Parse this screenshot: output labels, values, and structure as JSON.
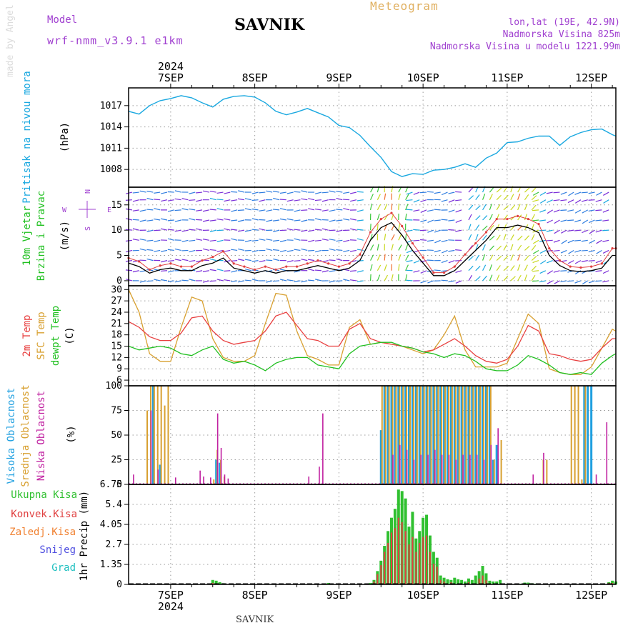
{
  "header": {
    "model_label": "Model",
    "model_version": "wrf-nmm_v3.9.1 e1km",
    "title": "SAVNIK",
    "subtitle": "Meteogram",
    "lonlat": "lon,lat (19E, 42.9N)",
    "elevation": "Nadmorska Visina 825m",
    "model_elevation": "Nadmorska Visina u modelu 1221.99m",
    "year": "2024",
    "footer": "SAVNIK",
    "credit": "made by Angel"
  },
  "time_axis": {
    "labels": [
      "7SEP",
      "8SEP",
      "9SEP",
      "10SEP",
      "11SEP",
      "12SEP"
    ],
    "range_hours": [
      -12,
      127
    ]
  },
  "colors": {
    "pressure": "#1aa8e0",
    "temp2m": "#e84040",
    "sfc": "#d8a030",
    "dewpt": "#20c020",
    "high_cloud": "#20a0e0",
    "mid_cloud": "#d8a030",
    "low_cloud": "#c020a0",
    "total_precip": "#30c030",
    "conv_precip": "#e04040",
    "frozen": "#f08030",
    "snow": "#5050e0",
    "hail": "#20c0c0",
    "wind_speed": "#000000",
    "gust": "#e04040"
  },
  "chart_data": [
    {
      "type": "line",
      "panel": "pressure",
      "ylabel": "Pritisak na nivou mora",
      "unit": "(hPa)",
      "yticks": [
        "1017",
        "1014",
        "1011",
        "1008"
      ],
      "ylim": [
        1005.5,
        1019.5
      ],
      "x": [
        -12,
        -9,
        -6,
        -3,
        0,
        3,
        6,
        9,
        12,
        15,
        18,
        21,
        24,
        27,
        30,
        33,
        36,
        39,
        42,
        45,
        48,
        51,
        54,
        57,
        60,
        63,
        66,
        69,
        72,
        75,
        78,
        81,
        84,
        87,
        90,
        93,
        96,
        99,
        102,
        105,
        108,
        111,
        114,
        117,
        120,
        123,
        126,
        127
      ],
      "values": [
        1016.2,
        1015.8,
        1017.0,
        1017.7,
        1018.0,
        1018.4,
        1018.1,
        1017.4,
        1016.8,
        1017.9,
        1018.3,
        1018.4,
        1018.2,
        1017.4,
        1016.2,
        1015.7,
        1016.1,
        1016.6,
        1016.0,
        1015.4,
        1014.2,
        1013.9,
        1012.8,
        1011.2,
        1009.7,
        1007.7,
        1007.0,
        1007.4,
        1007.3,
        1007.9,
        1008.0,
        1008.3,
        1008.8,
        1008.3,
        1009.6,
        1010.3,
        1011.8,
        1011.9,
        1012.4,
        1012.7,
        1012.7,
        1011.4,
        1012.6,
        1013.2,
        1013.6,
        1013.7,
        1012.9,
        1012.7
      ]
    },
    {
      "type": "line",
      "panel": "wind",
      "ylabel": "10m Vjetar",
      "ylabel2": "Brzina i Pravac",
      "unit": "(m/s)",
      "compass": {
        "n": "N",
        "s": "S",
        "e": "E",
        "w": "W"
      },
      "yticks": [
        "15",
        "10",
        "5",
        "0"
      ],
      "ylim": [
        -1,
        18.5
      ],
      "x": [
        -12,
        -9,
        -6,
        -3,
        0,
        3,
        6,
        9,
        12,
        15,
        18,
        21,
        24,
        27,
        30,
        33,
        36,
        39,
        42,
        45,
        48,
        51,
        54,
        57,
        60,
        63,
        66,
        69,
        72,
        75,
        78,
        81,
        84,
        87,
        90,
        93,
        96,
        99,
        102,
        105,
        108,
        111,
        114,
        117,
        120,
        123,
        126,
        127
      ],
      "values": [
        3.5,
        2.8,
        1.5,
        2.2,
        2.5,
        2.0,
        2.0,
        3.0,
        3.5,
        4.5,
        2.5,
        2.0,
        1.5,
        2.0,
        1.5,
        2.0,
        2.0,
        2.5,
        3.0,
        2.5,
        2.0,
        2.5,
        4.0,
        8.0,
        10.5,
        11.5,
        9.0,
        6.0,
        3.5,
        1.0,
        1.0,
        2.0,
        4.0,
        6.0,
        8.0,
        10.5,
        10.5,
        11.0,
        10.5,
        9.5,
        5.0,
        3.0,
        2.0,
        1.8,
        2.0,
        2.5,
        5.0,
        5.0
      ],
      "gust": [
        4.5,
        3.8,
        2.2,
        3.0,
        3.4,
        2.8,
        2.8,
        4.0,
        4.7,
        5.8,
        3.4,
        2.8,
        2.2,
        2.8,
        2.2,
        2.8,
        2.8,
        3.4,
        4.0,
        3.4,
        2.8,
        3.4,
        5.2,
        9.6,
        12.2,
        13.4,
        10.8,
        7.4,
        4.6,
        1.6,
        1.6,
        2.8,
        5.2,
        7.4,
        9.6,
        12.2,
        12.2,
        12.8,
        12.2,
        11.2,
        6.4,
        4.0,
        2.8,
        2.6,
        2.8,
        3.4,
        6.4,
        6.4
      ]
    },
    {
      "type": "line",
      "panel": "temperature",
      "ylabel": "2m Temp",
      "ylabel2": "SFC Temp",
      "ylabel3": "dewpt Temp",
      "unit": "(C)",
      "yticks": [
        "30",
        "27",
        "24",
        "21",
        "18",
        "15",
        "12",
        "9",
        "6"
      ],
      "ylim": [
        4.5,
        31
      ],
      "x": [
        -12,
        -9,
        -6,
        -3,
        0,
        3,
        6,
        9,
        12,
        15,
        18,
        21,
        24,
        27,
        30,
        33,
        36,
        39,
        42,
        45,
        48,
        51,
        54,
        57,
        60,
        63,
        66,
        69,
        72,
        75,
        78,
        81,
        84,
        87,
        90,
        93,
        96,
        99,
        102,
        105,
        108,
        111,
        114,
        117,
        120,
        123,
        126,
        127
      ],
      "temp2m": [
        21.5,
        20.0,
        17.5,
        16.5,
        16.5,
        18.5,
        22.5,
        23.0,
        19.0,
        16.5,
        15.5,
        16.0,
        16.5,
        19.0,
        23.0,
        24.0,
        20.5,
        17.0,
        16.5,
        15.0,
        15.0,
        19.5,
        21.0,
        17.0,
        16.0,
        15.5,
        15.0,
        14.5,
        13.5,
        14.0,
        15.5,
        17.0,
        15.0,
        12.5,
        11.0,
        10.5,
        11.5,
        15.0,
        20.5,
        19.0,
        13.0,
        12.5,
        11.5,
        11.0,
        11.5,
        14.5,
        17.0,
        17.0
      ],
      "sfc": [
        30.0,
        24.0,
        13.0,
        11.0,
        11.0,
        20.0,
        28.0,
        27.0,
        17.0,
        12.0,
        11.0,
        11.0,
        12.5,
        21.0,
        29.0,
        28.5,
        19.0,
        12.5,
        11.5,
        10.0,
        10.0,
        20.0,
        22.0,
        15.5,
        16.0,
        15.5,
        15.0,
        14.0,
        13.0,
        14.0,
        18.0,
        23.0,
        14.0,
        9.5,
        9.5,
        9.5,
        10.5,
        17.0,
        23.5,
        21.0,
        9.0,
        8.0,
        7.5,
        7.5,
        9.5,
        14.5,
        19.5,
        19.0
      ],
      "dewpt": [
        15.0,
        14.0,
        14.5,
        15.0,
        14.5,
        13.0,
        12.5,
        14.0,
        15.0,
        11.5,
        10.5,
        11.0,
        10.0,
        8.5,
        10.5,
        11.5,
        12.0,
        12.0,
        10.0,
        9.5,
        9.0,
        13.0,
        15.0,
        15.5,
        16.0,
        16.0,
        15.0,
        14.5,
        13.5,
        13.0,
        12.0,
        13.0,
        12.5,
        11.0,
        9.0,
        8.5,
        8.5,
        10.0,
        12.5,
        11.5,
        10.0,
        8.0,
        7.5,
        8.0,
        7.5,
        10.5,
        12.5,
        13.0
      ]
    },
    {
      "type": "bar",
      "panel": "cloud",
      "ylabel": "Visoka Oblacnost",
      "ylabel2": "Srednja Oblacnost",
      "ylabel3": "Niska Oblacnost",
      "unit": "(%)",
      "yticks": [
        "100",
        "75",
        "50",
        "25",
        "0"
      ],
      "ylim": [
        0,
        100
      ],
      "high": [
        [
          -10,
          0
        ],
        [
          -5,
          100
        ],
        [
          -3,
          20
        ],
        [
          2,
          0
        ],
        [
          13,
          25
        ],
        [
          14,
          22
        ],
        [
          44,
          0
        ],
        [
          58,
          0
        ],
        [
          60,
          55
        ],
        [
          61,
          100
        ],
        [
          62,
          100
        ],
        [
          63,
          100
        ],
        [
          64,
          100
        ],
        [
          65,
          100
        ],
        [
          66,
          100
        ],
        [
          67,
          100
        ],
        [
          68,
          100
        ],
        [
          69,
          100
        ],
        [
          70,
          100
        ],
        [
          71,
          100
        ],
        [
          72,
          100
        ],
        [
          73,
          100
        ],
        [
          74,
          100
        ],
        [
          75,
          100
        ],
        [
          76,
          100
        ],
        [
          77,
          100
        ],
        [
          78,
          100
        ],
        [
          79,
          100
        ],
        [
          80,
          100
        ],
        [
          81,
          100
        ],
        [
          82,
          100
        ],
        [
          83,
          100
        ],
        [
          84,
          100
        ],
        [
          85,
          100
        ],
        [
          86,
          100
        ],
        [
          87,
          100
        ],
        [
          88,
          100
        ],
        [
          89,
          100
        ],
        [
          90,
          100
        ],
        [
          91,
          100
        ],
        [
          92,
          25
        ],
        [
          93,
          40
        ],
        [
          118,
          100
        ],
        [
          119,
          100
        ],
        [
          120,
          100
        ]
      ],
      "mid": [
        [
          -7,
          75
        ],
        [
          -6,
          100
        ],
        [
          -5,
          100
        ],
        [
          -4,
          100
        ],
        [
          -3,
          100
        ],
        [
          -2,
          80
        ],
        [
          -1,
          100
        ],
        [
          12,
          5
        ],
        [
          13,
          35
        ],
        [
          14,
          25
        ],
        [
          15,
          8
        ],
        [
          60,
          100
        ],
        [
          61,
          100
        ],
        [
          62,
          100
        ],
        [
          63,
          100
        ],
        [
          64,
          100
        ],
        [
          65,
          100
        ],
        [
          66,
          100
        ],
        [
          67,
          100
        ],
        [
          68,
          100
        ],
        [
          69,
          100
        ],
        [
          70,
          100
        ],
        [
          71,
          100
        ],
        [
          72,
          100
        ],
        [
          73,
          100
        ],
        [
          74,
          100
        ],
        [
          75,
          100
        ],
        [
          76,
          100
        ],
        [
          77,
          100
        ],
        [
          78,
          100
        ],
        [
          79,
          100
        ],
        [
          80,
          100
        ],
        [
          81,
          100
        ],
        [
          82,
          100
        ],
        [
          83,
          100
        ],
        [
          84,
          100
        ],
        [
          85,
          100
        ],
        [
          86,
          100
        ],
        [
          87,
          100
        ],
        [
          88,
          100
        ],
        [
          89,
          100
        ],
        [
          90,
          100
        ],
        [
          91,
          100
        ],
        [
          92,
          25
        ],
        [
          94,
          45
        ],
        [
          106,
          25
        ],
        [
          107,
          25
        ],
        [
          114,
          100
        ],
        [
          115,
          100
        ],
        [
          116,
          100
        ],
        [
          117,
          5
        ],
        [
          118,
          100
        ]
      ],
      "low": [
        [
          -11,
          10
        ],
        [
          -6,
          75
        ],
        [
          -4,
          15
        ],
        [
          1,
          7
        ],
        [
          8,
          14
        ],
        [
          9,
          8
        ],
        [
          11,
          7
        ],
        [
          13,
          72
        ],
        [
          14,
          37
        ],
        [
          15,
          10
        ],
        [
          16,
          6
        ],
        [
          39,
          8
        ],
        [
          42,
          18
        ],
        [
          43,
          72
        ],
        [
          61,
          0
        ],
        [
          63,
          30
        ],
        [
          65,
          40
        ],
        [
          67,
          35
        ],
        [
          69,
          25
        ],
        [
          71,
          30
        ],
        [
          73,
          30
        ],
        [
          75,
          35
        ],
        [
          77,
          30
        ],
        [
          79,
          30
        ],
        [
          81,
          25
        ],
        [
          83,
          30
        ],
        [
          85,
          30
        ],
        [
          87,
          30
        ],
        [
          89,
          25
        ],
        [
          91,
          40
        ],
        [
          93,
          57
        ],
        [
          103,
          10
        ],
        [
          106,
          32
        ],
        [
          113,
          0
        ],
        [
          121,
          10
        ],
        [
          124,
          63
        ]
      ]
    },
    {
      "type": "bar",
      "panel": "precip",
      "ylabel": "1hr Precip",
      "unit": "(mm)",
      "series_names": [
        "Ukupna Kisa",
        "Konvek.Kisa",
        "Zaledj.Kisa",
        "Snijeg",
        "Grad"
      ],
      "yticks": [
        "6.75",
        "5.4",
        "4.05",
        "2.7",
        "1.35",
        "0"
      ],
      "ylim": [
        0,
        6.75
      ],
      "total": [
        [
          12,
          0.3
        ],
        [
          13,
          0.25
        ],
        [
          14,
          0.15
        ],
        [
          15,
          0.08
        ],
        [
          45,
          0.1
        ],
        [
          57,
          0.1
        ],
        [
          58,
          0.3
        ],
        [
          59,
          0.9
        ],
        [
          60,
          1.6
        ],
        [
          61,
          2.6
        ],
        [
          62,
          3.6
        ],
        [
          63,
          4.5
        ],
        [
          64,
          5.1
        ],
        [
          65,
          6.4
        ],
        [
          66,
          6.3
        ],
        [
          67,
          5.8
        ],
        [
          68,
          3.9
        ],
        [
          69,
          4.9
        ],
        [
          70,
          3.1
        ],
        [
          71,
          3.6
        ],
        [
          72,
          4.5
        ],
        [
          73,
          4.7
        ],
        [
          74,
          3.3
        ],
        [
          75,
          2.2
        ],
        [
          76,
          1.8
        ],
        [
          77,
          0.6
        ],
        [
          78,
          0.45
        ],
        [
          79,
          0.35
        ],
        [
          80,
          0.3
        ],
        [
          81,
          0.45
        ],
        [
          82,
          0.35
        ],
        [
          83,
          0.3
        ],
        [
          84,
          0.2
        ],
        [
          85,
          0.4
        ],
        [
          86,
          0.3
        ],
        [
          87,
          0.6
        ],
        [
          88,
          0.9
        ],
        [
          89,
          1.25
        ],
        [
          90,
          0.75
        ],
        [
          91,
          0.25
        ],
        [
          92,
          0.2
        ],
        [
          93,
          0.2
        ],
        [
          94,
          0.3
        ],
        [
          96,
          0.05
        ],
        [
          100,
          0.05
        ],
        [
          101,
          0.12
        ],
        [
          102,
          0.12
        ],
        [
          103,
          0.08
        ],
        [
          104,
          0.05
        ],
        [
          125,
          0.15
        ],
        [
          126,
          0.25
        ],
        [
          127,
          0.2
        ]
      ],
      "conv": [
        [
          12,
          0.1
        ],
        [
          58,
          0.2
        ],
        [
          59,
          0.7
        ],
        [
          60,
          1.3
        ],
        [
          61,
          2.2
        ],
        [
          62,
          2.8
        ],
        [
          63,
          3.5
        ],
        [
          64,
          3.8
        ],
        [
          65,
          4.5
        ],
        [
          66,
          4.2
        ],
        [
          67,
          3.6
        ],
        [
          68,
          2.7
        ],
        [
          69,
          3.2
        ],
        [
          70,
          2.2
        ],
        [
          71,
          2.8
        ],
        [
          72,
          3.2
        ],
        [
          73,
          3.3
        ],
        [
          74,
          2.2
        ],
        [
          75,
          1.4
        ],
        [
          76,
          1.2
        ],
        [
          77,
          0.3
        ],
        [
          78,
          0.2
        ],
        [
          80,
          0.15
        ],
        [
          85,
          0.15
        ],
        [
          88,
          0.4
        ],
        [
          89,
          0.6
        ],
        [
          90,
          0.3
        ],
        [
          125,
          0.1
        ],
        [
          126,
          0.1
        ]
      ]
    }
  ]
}
